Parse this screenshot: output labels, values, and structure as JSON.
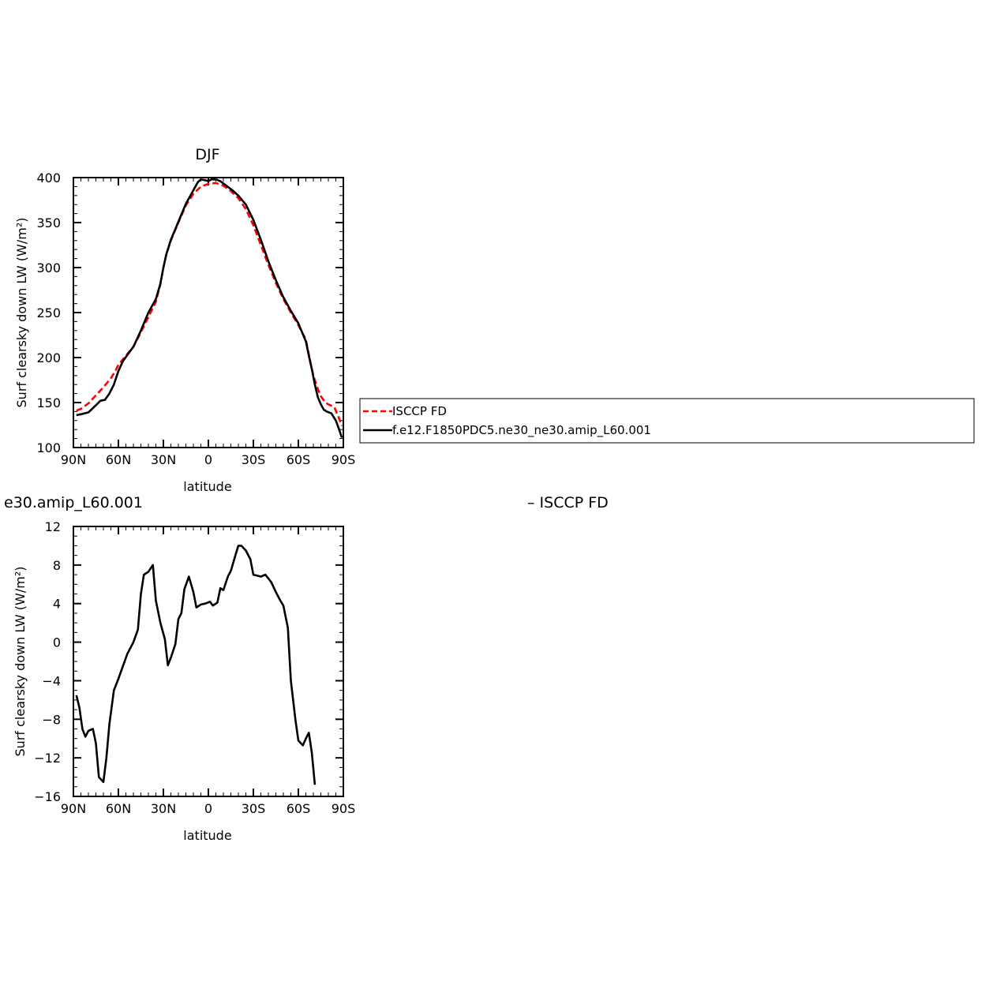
{
  "chart_data": [
    {
      "type": "line",
      "title": "DJF",
      "xlabel": "latitude",
      "ylabel": "Surf clearsky down LW (W/m²)",
      "xlim": [
        90,
        -90
      ],
      "ylim": [
        100,
        400
      ],
      "x_ticks": [
        90,
        60,
        30,
        0,
        -30,
        -60,
        -90
      ],
      "x_tick_labels": [
        "90N",
        "60N",
        "30N",
        "0",
        "30S",
        "60S",
        "90S"
      ],
      "y_ticks": [
        100,
        150,
        200,
        250,
        300,
        350,
        400
      ],
      "y_tick_labels": [
        "100",
        "150",
        "200",
        "250",
        "300",
        "350",
        "400"
      ],
      "legend_position": "right",
      "series": [
        {
          "name": "ISCCP FD",
          "color": "#ff0000",
          "dash": "dashed",
          "points": [
            [
              88,
              141
            ],
            [
              85,
              143
            ],
            [
              80,
              149
            ],
            [
              75,
              158
            ],
            [
              70,
              167
            ],
            [
              65,
              177
            ],
            [
              62,
              185
            ],
            [
              60,
              192
            ],
            [
              55,
              202
            ],
            [
              50,
              212
            ],
            [
              45,
              228
            ],
            [
              40,
              245
            ],
            [
              35,
              262
            ],
            [
              32,
              282
            ],
            [
              30,
              300
            ],
            [
              28,
              315
            ],
            [
              25,
              330
            ],
            [
              20,
              350
            ],
            [
              15,
              369
            ],
            [
              10,
              382
            ],
            [
              5,
              390
            ],
            [
              0,
              393
            ],
            [
              -5,
              394
            ],
            [
              -10,
              391
            ],
            [
              -15,
              385
            ],
            [
              -20,
              377
            ],
            [
              -25,
              365
            ],
            [
              -30,
              347
            ],
            [
              -35,
              325
            ],
            [
              -40,
              303
            ],
            [
              -45,
              283
            ],
            [
              -50,
              265
            ],
            [
              -55,
              250
            ],
            [
              -60,
              236
            ],
            [
              -65,
              220
            ],
            [
              -68,
              195
            ],
            [
              -70,
              180
            ],
            [
              -73,
              165
            ],
            [
              -75,
              157
            ],
            [
              -78,
              150
            ],
            [
              -80,
              148
            ],
            [
              -84,
              145
            ],
            [
              -87,
              133
            ],
            [
              -89,
              124
            ]
          ]
        },
        {
          "name": "f.e12.F1850PDC5.ne30_ne30.amip_L60.001",
          "color": "#000000",
          "dash": "solid",
          "points": [
            [
              88,
              136
            ],
            [
              85,
              137
            ],
            [
              80,
              139
            ],
            [
              75,
              147
            ],
            [
              72,
              152
            ],
            [
              69,
              153
            ],
            [
              66,
              160
            ],
            [
              63,
              170
            ],
            [
              60,
              185
            ],
            [
              57,
              196
            ],
            [
              54,
              203
            ],
            [
              50,
              212
            ],
            [
              45,
              230
            ],
            [
              40,
              250
            ],
            [
              35,
              265
            ],
            [
              32,
              282
            ],
            [
              30,
              300
            ],
            [
              28,
              315
            ],
            [
              25,
              331
            ],
            [
              20,
              351
            ],
            [
              15,
              371
            ],
            [
              10,
              386
            ],
            [
              7,
              395
            ],
            [
              5,
              398
            ],
            [
              2,
              397
            ],
            [
              0,
              396
            ],
            [
              -2,
              398
            ],
            [
              -5,
              398
            ],
            [
              -8,
              396
            ],
            [
              -12,
              391
            ],
            [
              -16,
              386
            ],
            [
              -20,
              380
            ],
            [
              -25,
              370
            ],
            [
              -30,
              353
            ],
            [
              -35,
              331
            ],
            [
              -40,
              307
            ],
            [
              -45,
              286
            ],
            [
              -50,
              267
            ],
            [
              -55,
              252
            ],
            [
              -60,
              238
            ],
            [
              -65,
              218
            ],
            [
              -67,
              202
            ],
            [
              -69,
              187
            ],
            [
              -71,
              170
            ],
            [
              -73,
              156
            ],
            [
              -75,
              148
            ],
            [
              -77,
              142
            ],
            [
              -79,
              140
            ],
            [
              -82,
              138
            ],
            [
              -85,
              130
            ],
            [
              -87,
              121
            ],
            [
              -89,
              111
            ]
          ]
        }
      ]
    },
    {
      "type": "line",
      "title": "e30.amip_L60.001",
      "subtitle": "– ISCCP FD",
      "xlabel": "latitude",
      "ylabel": "Surf clearsky down LW (W/m²)",
      "xlim": [
        90,
        -90
      ],
      "ylim": [
        -16,
        12
      ],
      "x_ticks": [
        90,
        60,
        30,
        0,
        -30,
        -60,
        -90
      ],
      "x_tick_labels": [
        "90N",
        "60N",
        "30N",
        "0",
        "30S",
        "60S",
        "90S"
      ],
      "y_ticks": [
        -16,
        -12,
        -8,
        -4,
        0,
        4,
        8,
        12
      ],
      "y_tick_labels": [
        "−16",
        "−12",
        "−8",
        "−4",
        "0",
        "4",
        "8",
        "12"
      ],
      "series": [
        {
          "color": "#000000",
          "dash": "solid",
          "points": [
            [
              88,
              -5.5
            ],
            [
              86,
              -6.8
            ],
            [
              84,
              -9.0
            ],
            [
              82,
              -9.8
            ],
            [
              80,
              -9.2
            ],
            [
              77,
              -9.0
            ],
            [
              75,
              -10.5
            ],
            [
              73,
              -14.0
            ],
            [
              70,
              -14.5
            ],
            [
              68,
              -12.0
            ],
            [
              66,
              -8.5
            ],
            [
              63,
              -5.0
            ],
            [
              60,
              -3.8
            ],
            [
              57,
              -2.5
            ],
            [
              54,
              -1.2
            ],
            [
              50,
              0.0
            ],
            [
              47,
              1.3
            ],
            [
              45,
              5.0
            ],
            [
              43,
              7.0
            ],
            [
              40,
              7.3
            ],
            [
              37,
              8.0
            ],
            [
              35,
              4.3
            ],
            [
              32,
              2.0
            ],
            [
              29,
              0.3
            ],
            [
              27,
              -2.4
            ],
            [
              25,
              -1.6
            ],
            [
              22,
              -0.2
            ],
            [
              20,
              2.4
            ],
            [
              18,
              3.0
            ],
            [
              16,
              5.5
            ],
            [
              13,
              6.8
            ],
            [
              10,
              5.2
            ],
            [
              8,
              3.6
            ],
            [
              5,
              3.9
            ],
            [
              2,
              4.0
            ],
            [
              -1,
              4.2
            ],
            [
              -3,
              3.8
            ],
            [
              -6,
              4.1
            ],
            [
              -8,
              5.6
            ],
            [
              -10,
              5.4
            ],
            [
              -13,
              6.8
            ],
            [
              -15,
              7.4
            ],
            [
              -18,
              9.0
            ],
            [
              -20,
              10.0
            ],
            [
              -22,
              10.0
            ],
            [
              -25,
              9.5
            ],
            [
              -28,
              8.6
            ],
            [
              -30,
              7.0
            ],
            [
              -35,
              6.8
            ],
            [
              -38,
              7.0
            ],
            [
              -42,
              6.2
            ],
            [
              -45,
              5.2
            ],
            [
              -48,
              4.3
            ],
            [
              -50,
              3.8
            ],
            [
              -53,
              1.5
            ],
            [
              -55,
              -4.0
            ],
            [
              -58,
              -8.0
            ],
            [
              -60,
              -10.2
            ],
            [
              -63,
              -10.7
            ],
            [
              -65,
              -10.0
            ],
            [
              -67,
              -9.4
            ],
            [
              -69,
              -11.5
            ],
            [
              -71,
              -14.8
            ]
          ]
        }
      ]
    }
  ]
}
